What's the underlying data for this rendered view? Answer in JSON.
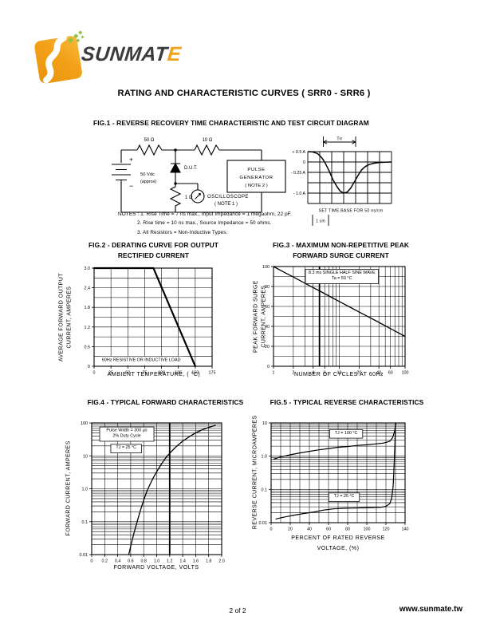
{
  "page": {
    "title": "RATING AND CHARACTERISTIC CURVES  ( SRR0 - SRR6 )",
    "footer": {
      "page_number": "2  of 2",
      "website": "www.sunmate.tw"
    }
  },
  "logo": {
    "brand": "SUNMATE",
    "brand_prefix": "SUNMAT",
    "brand_last": "E",
    "colors": {
      "square": "#F2A118",
      "square_dark": "#E08A0C",
      "sparkles": "#8CC63F",
      "text": "#3B3B3D"
    }
  },
  "fig1": {
    "heading": "FIG.1 - REVERSE RECOVERY TIME CHARACTERISTIC AND TEST CIRCUIT DIAGRAM",
    "circuit": {
      "resistor_top_left": "50 Ω",
      "resistor_top_right": "10 Ω",
      "resistor_shunt": "1 Ω",
      "battery_plus": "+",
      "battery_minus": "−",
      "battery_label_1": "50 Vdc",
      "battery_label_2": "(approx)",
      "dut_label": "D.U.T.",
      "pulse_generator": [
        "PULSE",
        "GENERATOR",
        "( NOTE 2 )"
      ],
      "oscilloscope": [
        "OSCILLOSCOPE",
        "( NOTE 1 )"
      ]
    },
    "scope": {
      "trr_label": "Trr",
      "grid": {
        "cols": 7,
        "rows": 5
      },
      "trr_span_cells": [
        1.3,
        4.0
      ],
      "y_axis_labels": [
        {
          "text": "+ 0.5 A",
          "row": 0
        },
        {
          "text": "0",
          "row": 1
        },
        {
          "text": "- 0.25 A",
          "row": 2
        },
        {
          "text": "- 1.0 A",
          "row": 4
        }
      ],
      "trace_points_cells": [
        [
          0,
          0
        ],
        [
          0.4,
          0.03
        ],
        [
          0.8,
          0.18
        ],
        [
          1.1,
          0.5
        ],
        [
          1.3,
          0.8
        ],
        [
          1.5,
          1.2
        ],
        [
          1.8,
          1.9
        ],
        [
          2.1,
          2.7
        ],
        [
          2.4,
          3.3
        ],
        [
          2.7,
          3.8
        ],
        [
          3.0,
          4.0
        ],
        [
          3.3,
          3.9
        ],
        [
          3.6,
          3.5
        ],
        [
          3.9,
          2.9
        ],
        [
          4.2,
          2.3
        ],
        [
          4.5,
          1.75
        ],
        [
          4.8,
          1.45
        ],
        [
          5.1,
          1.25
        ],
        [
          5.5,
          1.12
        ],
        [
          6.0,
          1.05
        ],
        [
          6.5,
          1.02
        ],
        [
          7.0,
          1.0
        ]
      ],
      "caption": "SET TIME BASE FOR  50 ns/cm",
      "scale_marker": "1 cm"
    },
    "notes": [
      "NOTES :  1. Rise Time = 7 ns max., Input Impedance = 1 megaohm, 22 pF.",
      "2. Rise time = 10 ns max., Source Impedance = 50 ohms.",
      "3. All Resistors = Non-Inductive Types."
    ]
  },
  "chart_data": [
    {
      "id": "fig2",
      "type": "line",
      "title_lines": [
        "FIG.2 - DERATING CURVE FOR OUTPUT",
        "RECTIFIED CURRENT"
      ],
      "xlabel": "AMBIENT TEMPERATURE, ( °C)",
      "ylabel_lines": [
        "AVERAGE FORWARD OUTPUT",
        "CURRENT, AMPERES"
      ],
      "x_scale": "linear",
      "xlim": [
        0,
        175
      ],
      "x_minor_step": 25,
      "y_scale": "linear",
      "ylim": [
        0,
        3.0
      ],
      "y_minor_step": 0.3,
      "x_ticks": [
        0,
        25,
        50,
        75,
        100,
        125,
        150,
        175
      ],
      "x_tick_labels": [
        "0",
        "25",
        "50",
        "75",
        "100",
        "125",
        "150",
        "175"
      ],
      "y_ticks": [
        0,
        0.6,
        1.2,
        1.8,
        2.4,
        3.0
      ],
      "y_tick_labels": [
        "0",
        "0.6",
        "1.2",
        "1.8",
        "2.4",
        "3.0"
      ],
      "grid": true,
      "legend": "none",
      "annotations": [
        {
          "text_lines": [
            "60Hz RESISTIVE OR INDUCTIVE LOAD"
          ],
          "boxed": false
        }
      ],
      "series": [
        {
          "name": "derating-curve",
          "width": 2.2,
          "points": [
            [
              0,
              3.0
            ],
            [
              88,
              3.0
            ],
            [
              150,
              0
            ]
          ]
        }
      ]
    },
    {
      "id": "fig3",
      "type": "line",
      "title_lines": [
        "FIG.3 - MAXIMUM NON-REPETITIVE PEAK",
        "FORWARD SURGE CURRENT"
      ],
      "xlabel": "NUMBER OF CYCLES AT 60Hz",
      "ylabel_lines": [
        "PEAK FORWARD SURGE",
        "CURRENT, AMPERES"
      ],
      "x_scale": "log",
      "xlim": [
        1,
        100
      ],
      "y_scale": "linear",
      "ylim": [
        0,
        100
      ],
      "y_minor_step": 10,
      "bold_x": [
        5
      ],
      "x_ticks": [
        1,
        2,
        4,
        6,
        10,
        20,
        40,
        60,
        100
      ],
      "x_tick_labels": [
        "1",
        "2",
        "4",
        "6",
        "10",
        "20",
        "40",
        "60",
        "100"
      ],
      "y_ticks": [
        0,
        20,
        40,
        60,
        80,
        100
      ],
      "y_tick_labels": [
        "0",
        "20",
        "40",
        "60",
        "80",
        "100"
      ],
      "grid": true,
      "legend": "none",
      "annotations": [
        {
          "text_lines": [
            "8.3 ms SINGLE HALF SINE WAVE",
            "Ta = 50 °C"
          ],
          "boxed": true
        }
      ],
      "series": [
        {
          "name": "surge-current",
          "width": 1.3,
          "points": [
            [
              1,
              100
            ],
            [
              1.5,
              93.8
            ],
            [
              2,
              89.5
            ],
            [
              3,
              83.3
            ],
            [
              4,
              78.9
            ],
            [
              5,
              75.6
            ],
            [
              7,
              70.4
            ],
            [
              10,
              65
            ],
            [
              15,
              58.8
            ],
            [
              20,
              54.5
            ],
            [
              30,
              48.3
            ],
            [
              40,
              44
            ],
            [
              60,
              37.8
            ],
            [
              80,
              33.4
            ],
            [
              100,
              30
            ]
          ]
        }
      ]
    },
    {
      "id": "fig4",
      "type": "line",
      "title_lines": [
        "FIG.4 - TYPICAL FORWARD  CHARACTERISTICS"
      ],
      "xlabel": "FORWARD VOLTAGE, VOLTS",
      "ylabel_lines": [
        "FORWARD CURRENT, AMPERES"
      ],
      "x_scale": "linear",
      "xlim": [
        0,
        2.0
      ],
      "x_minor_step": 0.2,
      "y_scale": "log",
      "ylim": [
        0.01,
        100
      ],
      "bold_x": [
        1.2
      ],
      "x_ticks": [
        0,
        0.2,
        0.4,
        0.6,
        0.8,
        1.0,
        1.2,
        1.4,
        1.6,
        1.8,
        2.0
      ],
      "x_tick_labels": [
        "0",
        "0.2",
        "0.4",
        "0.6",
        "0.8",
        "1.0",
        "1.2",
        "1.4",
        "1.6",
        "1.8",
        "2.0"
      ],
      "y_ticks": [
        0.01,
        0.1,
        1,
        10,
        100
      ],
      "y_tick_labels": [
        "0.01",
        "0.1",
        "1.0",
        "10",
        "100"
      ],
      "grid": true,
      "legend": "none",
      "annotations": [
        {
          "text_lines": [
            "Pulse Width = 300 μs",
            "2% Duty Cycle"
          ],
          "boxed": true
        },
        {
          "text_lines": [
            "TJ = 25 °C"
          ],
          "boxed": true
        }
      ],
      "series": [
        {
          "name": "forward-current",
          "width": 1.3,
          "points": [
            [
              0.57,
              0.01
            ],
            [
              0.6,
              0.018
            ],
            [
              0.65,
              0.045
            ],
            [
              0.7,
              0.1
            ],
            [
              0.75,
              0.22
            ],
            [
              0.8,
              0.45
            ],
            [
              0.85,
              0.85
            ],
            [
              0.9,
              1.4
            ],
            [
              0.95,
              2.2
            ],
            [
              1.0,
              3.3
            ],
            [
              1.05,
              4.8
            ],
            [
              1.1,
              6.8
            ],
            [
              1.15,
              9.2
            ],
            [
              1.2,
              12
            ],
            [
              1.3,
              19
            ],
            [
              1.4,
              28
            ],
            [
              1.5,
              38
            ],
            [
              1.6,
              50
            ],
            [
              1.7,
              62
            ],
            [
              1.8,
              73
            ],
            [
              1.9,
              84
            ]
          ]
        }
      ]
    },
    {
      "id": "fig5",
      "type": "line",
      "title_lines": [
        "FIG.5 - TYPICAL REVERSE CHARACTERISTICS"
      ],
      "xlabel": "PERCENT OF RATED REVERSE",
      "xlabel_line2": "VOLTAGE, (%)",
      "ylabel_lines": [
        "REVERSE CURRENT, MICROAMPERES"
      ],
      "x_scale": "linear",
      "xlim": [
        0,
        140
      ],
      "x_minor_step": 10,
      "y_scale": "log",
      "ylim": [
        0.01,
        10
      ],
      "x_ticks": [
        0,
        20,
        40,
        60,
        80,
        100,
        120,
        140
      ],
      "x_tick_labels": [
        "0",
        "20",
        "40",
        "60",
        "80",
        "100",
        "120",
        "140"
      ],
      "y_ticks": [
        0.01,
        0.1,
        1,
        10
      ],
      "y_tick_labels": [
        "0.01",
        "0.1",
        "1.0",
        "10"
      ],
      "grid": true,
      "legend": "inline-boxes",
      "annotations": [
        {
          "text_lines": [
            "TJ = 100 °C"
          ],
          "boxed": true
        },
        {
          "text_lines": [
            "TJ = 25 °C"
          ],
          "boxed": true
        }
      ],
      "series": [
        {
          "name": "TJ = 100 °C",
          "width": 1.2,
          "points": [
            [
              3,
              0.82
            ],
            [
              10,
              0.95
            ],
            [
              20,
              1.1
            ],
            [
              30,
              1.25
            ],
            [
              40,
              1.4
            ],
            [
              50,
              1.55
            ],
            [
              60,
              1.7
            ],
            [
              70,
              1.85
            ],
            [
              80,
              1.95
            ],
            [
              90,
              2.1
            ],
            [
              100,
              2.2
            ],
            [
              110,
              2.35
            ],
            [
              118,
              2.5
            ],
            [
              124,
              2.8
            ],
            [
              127,
              3.6
            ],
            [
              129,
              5.5
            ],
            [
              130.5,
              10
            ]
          ]
        },
        {
          "name": "TJ = 25 °C",
          "width": 1.2,
          "points": [
            [
              5,
              0.013
            ],
            [
              15,
              0.015
            ],
            [
              25,
              0.017
            ],
            [
              35,
              0.019
            ],
            [
              45,
              0.021
            ],
            [
              55,
              0.024
            ],
            [
              65,
              0.026
            ],
            [
              75,
              0.027
            ],
            [
              85,
              0.0275
            ],
            [
              95,
              0.028
            ],
            [
              105,
              0.0285
            ],
            [
              115,
              0.029
            ],
            [
              120,
              0.031
            ],
            [
              124,
              0.037
            ],
            [
              126,
              0.055
            ],
            [
              127.5,
              0.12
            ],
            [
              128.5,
              0.5
            ],
            [
              129.5,
              3
            ],
            [
              130,
              10
            ]
          ]
        }
      ]
    }
  ]
}
